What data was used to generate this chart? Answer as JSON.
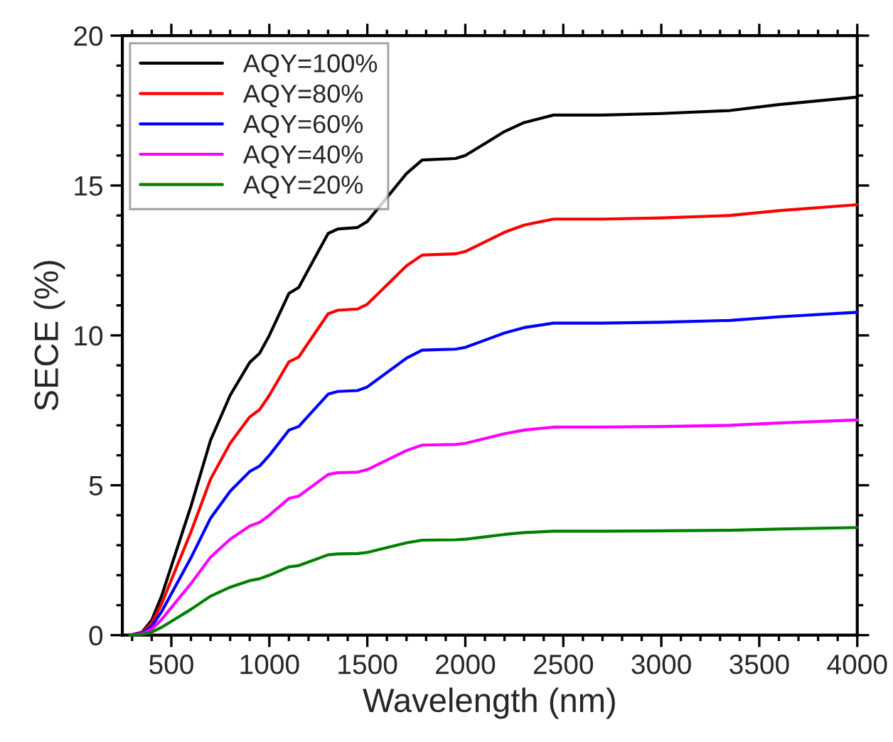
{
  "chart_data": {
    "type": "line",
    "xlabel": "Wavelength (nm)",
    "ylabel": "SECE (%)",
    "x": [
      290,
      350,
      400,
      450,
      500,
      600,
      700,
      800,
      900,
      950,
      1000,
      1100,
      1150,
      1200,
      1300,
      1350,
      1450,
      1500,
      1600,
      1700,
      1780,
      1950,
      2000,
      2100,
      2200,
      2300,
      2450,
      2700,
      3000,
      3350,
      3600,
      4000
    ],
    "series": [
      {
        "name": "AQY=100%",
        "color": "#000000",
        "values": [
          0,
          0.1,
          0.5,
          1.3,
          2.3,
          4.3,
          6.5,
          8.0,
          9.1,
          9.4,
          10.0,
          11.4,
          11.6,
          12.2,
          13.4,
          13.55,
          13.6,
          13.8,
          14.6,
          15.4,
          15.85,
          15.9,
          16.0,
          16.4,
          16.8,
          17.1,
          17.35,
          17.35,
          17.4,
          17.5,
          17.7,
          17.95
        ]
      },
      {
        "name": "AQY=80%",
        "color": "#ff0000",
        "values": [
          0,
          0.08,
          0.4,
          1.04,
          1.84,
          3.44,
          5.2,
          6.4,
          7.28,
          7.52,
          8.0,
          9.12,
          9.28,
          9.76,
          10.72,
          10.84,
          10.88,
          11.04,
          11.68,
          12.32,
          12.68,
          12.72,
          12.8,
          13.12,
          13.44,
          13.68,
          13.88,
          13.88,
          13.92,
          14.0,
          14.16,
          14.36
        ]
      },
      {
        "name": "AQY=60%",
        "color": "#0000ff",
        "values": [
          0,
          0.06,
          0.3,
          0.78,
          1.38,
          2.58,
          3.9,
          4.8,
          5.46,
          5.64,
          6.0,
          6.84,
          6.96,
          7.32,
          8.04,
          8.13,
          8.16,
          8.28,
          8.76,
          9.24,
          9.51,
          9.54,
          9.6,
          9.84,
          10.08,
          10.26,
          10.41,
          10.41,
          10.44,
          10.5,
          10.62,
          10.77
        ]
      },
      {
        "name": "AQY=40%",
        "color": "#ff00ff",
        "values": [
          0,
          0.04,
          0.2,
          0.52,
          0.92,
          1.72,
          2.6,
          3.2,
          3.64,
          3.76,
          4.0,
          4.56,
          4.64,
          4.88,
          5.36,
          5.42,
          5.44,
          5.52,
          5.84,
          6.16,
          6.34,
          6.36,
          6.4,
          6.56,
          6.72,
          6.84,
          6.94,
          6.94,
          6.96,
          7.0,
          7.08,
          7.18
        ]
      },
      {
        "name": "AQY=20%",
        "color": "#008000",
        "values": [
          0,
          0.02,
          0.1,
          0.26,
          0.46,
          0.86,
          1.3,
          1.6,
          1.82,
          1.88,
          2.0,
          2.28,
          2.32,
          2.44,
          2.68,
          2.71,
          2.72,
          2.76,
          2.92,
          3.08,
          3.17,
          3.18,
          3.2,
          3.28,
          3.36,
          3.42,
          3.47,
          3.47,
          3.48,
          3.5,
          3.54,
          3.59
        ]
      }
    ],
    "xlim": [
      250,
      4000
    ],
    "xticks": [
      {
        "value": 300,
        "label": null
      },
      {
        "value": 400,
        "label": null
      },
      500,
      {
        "value": 600,
        "label": null
      },
      {
        "value": 700,
        "label": null
      },
      {
        "value": 800,
        "label": null
      },
      {
        "value": 900,
        "label": null
      },
      1000,
      {
        "value": 1100,
        "label": null
      },
      {
        "value": 1200,
        "label": null
      },
      {
        "value": 1300,
        "label": null
      },
      {
        "value": 1400,
        "label": null
      },
      1500,
      {
        "value": 1600,
        "label": null
      },
      {
        "value": 1700,
        "label": null
      },
      {
        "value": 1800,
        "label": null
      },
      {
        "value": 1900,
        "label": null
      },
      2000,
      {
        "value": 2100,
        "label": null
      },
      {
        "value": 2200,
        "label": null
      },
      {
        "value": 2300,
        "label": null
      },
      {
        "value": 2400,
        "label": null
      },
      2500,
      {
        "value": 2600,
        "label": null
      },
      {
        "value": 2700,
        "label": null
      },
      {
        "value": 2800,
        "label": null
      },
      {
        "value": 2900,
        "label": null
      },
      3000,
      {
        "value": 3100,
        "label": null
      },
      {
        "value": 3200,
        "label": null
      },
      {
        "value": 3300,
        "label": null
      },
      {
        "value": 3400,
        "label": null
      },
      3500,
      {
        "value": 3600,
        "label": null
      },
      {
        "value": 3700,
        "label": null
      },
      {
        "value": 3800,
        "label": null
      },
      {
        "value": 3900,
        "label": null
      },
      4000
    ],
    "ylim": [
      0,
      20
    ],
    "yticks": [
      0,
      {
        "value": 1,
        "label": null
      },
      {
        "value": 2,
        "label": null
      },
      {
        "value": 3,
        "label": null
      },
      {
        "value": 4,
        "label": null
      },
      5,
      {
        "value": 6,
        "label": null
      },
      {
        "value": 7,
        "label": null
      },
      {
        "value": 8,
        "label": null
      },
      {
        "value": 9,
        "label": null
      },
      10,
      {
        "value": 11,
        "label": null
      },
      {
        "value": 12,
        "label": null
      },
      {
        "value": 13,
        "label": null
      },
      {
        "value": 14,
        "label": null
      },
      15,
      {
        "value": 16,
        "label": null
      },
      {
        "value": 17,
        "label": null
      },
      {
        "value": 18,
        "label": null
      },
      {
        "value": 19,
        "label": null
      },
      20
    ],
    "grid": false,
    "legend": "top left",
    "marker": "none",
    "line_style": "solid"
  }
}
